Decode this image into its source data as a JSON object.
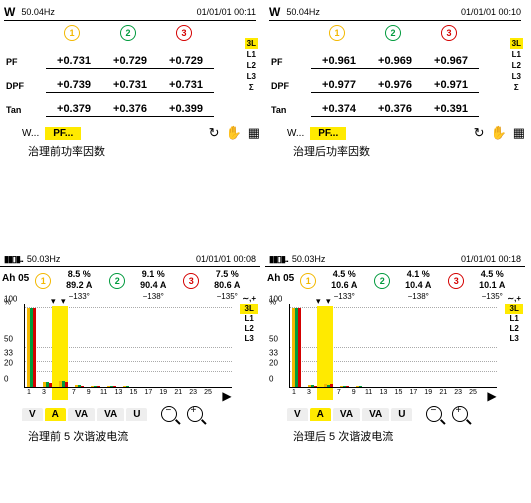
{
  "colors": {
    "p1": "#f3b800",
    "p2": "#009a3d",
    "p3": "#d40000",
    "hl": "#ffea00",
    "grid": "#bdbdbd"
  },
  "top": [
    {
      "hz": "50.04Hz",
      "ts": "01/01/01  00:11",
      "rows": [
        {
          "lab": "PF",
          "v": [
            "+0.731",
            "+0.729",
            "+0.729"
          ]
        },
        {
          "lab": "DPF",
          "v": [
            "+0.739",
            "+0.731",
            "+0.731"
          ]
        },
        {
          "lab": "Tan",
          "v": [
            "+0.379",
            "+0.376",
            "+0.399"
          ]
        }
      ],
      "caption": "治理前功率因数"
    },
    {
      "hz": "50.04Hz",
      "ts": "01/01/01  00:10",
      "rows": [
        {
          "lab": "PF",
          "v": [
            "+0.961",
            "+0.969",
            "+0.967"
          ]
        },
        {
          "lab": "DPF",
          "v": [
            "+0.977",
            "+0.976",
            "+0.971"
          ]
        },
        {
          "lab": "Tan",
          "v": [
            "+0.374",
            "+0.376",
            "+0.391"
          ]
        }
      ],
      "caption": "治理后功率因数"
    }
  ],
  "side_top": [
    "3L",
    "L1",
    "L2",
    "L3",
    "Σ"
  ],
  "tbar": {
    "w": "W...",
    "pf": "PF...",
    "icons": [
      "↻",
      "✋",
      "▦"
    ]
  },
  "bot": [
    {
      "hz": "50.03Hz",
      "ts": "01/01/01  00:08",
      "ah": "Ah 05",
      "ph": [
        {
          "pct": "8.5 %",
          "amp": "89.2 A",
          "deg": "−133°"
        },
        {
          "pct": "9.1 %",
          "amp": "90.4 A",
          "deg": "−138°"
        },
        {
          "pct": "7.5 %",
          "amp": "80.6 A",
          "deg": "−135°"
        }
      ],
      "caption": "治理前 5 次谐波电流"
    },
    {
      "hz": "50.03Hz",
      "ts": "01/01/01  00:18",
      "ah": "Ah 05",
      "ph": [
        {
          "pct": "4.5 %",
          "amp": "10.6 A",
          "deg": "−133°"
        },
        {
          "pct": "4.1 %",
          "amp": "10.4 A",
          "deg": "−138°"
        },
        {
          "pct": "4.5 %",
          "amp": "10.1 A",
          "deg": "−135°"
        }
      ],
      "caption": "治理后 5 次谐波电流"
    }
  ],
  "side_bot": [
    "∼,+",
    "3L",
    "L1",
    "L2",
    "L3"
  ],
  "bot_tabs": [
    "V",
    "A",
    "VA",
    "VA",
    "U"
  ],
  "chart": {
    "yticks": [
      0,
      20,
      33,
      50,
      100
    ],
    "xticks": [
      1,
      3,
      5,
      7,
      9,
      11,
      13,
      15,
      17,
      19,
      21,
      23,
      25
    ],
    "bars": [
      {
        "x": 1,
        "h": [
          100,
          100,
          100
        ]
      },
      {
        "x": 3,
        "h": [
          8,
          7,
          6
        ]
      },
      {
        "x": 5,
        "h": [
          9,
          9,
          8
        ]
      },
      {
        "x": 7,
        "h": [
          4,
          4,
          3
        ]
      },
      {
        "x": 9,
        "h": [
          3,
          3,
          2
        ]
      },
      {
        "x": 11,
        "h": [
          2,
          2,
          2
        ]
      },
      {
        "x": 13,
        "h": [
          2,
          2,
          1
        ]
      }
    ],
    "bars2": [
      {
        "x": 1,
        "h": [
          100,
          100,
          100
        ]
      },
      {
        "x": 3,
        "h": [
          4,
          4,
          3
        ]
      },
      {
        "x": 5,
        "h": [
          5,
          4,
          5
        ]
      },
      {
        "x": 7,
        "h": [
          2,
          2,
          2
        ]
      },
      {
        "x": 9,
        "h": [
          2,
          2,
          1
        ]
      },
      {
        "x": 11,
        "h": [
          1,
          1,
          1
        ]
      }
    ],
    "sel_x": 5
  }
}
